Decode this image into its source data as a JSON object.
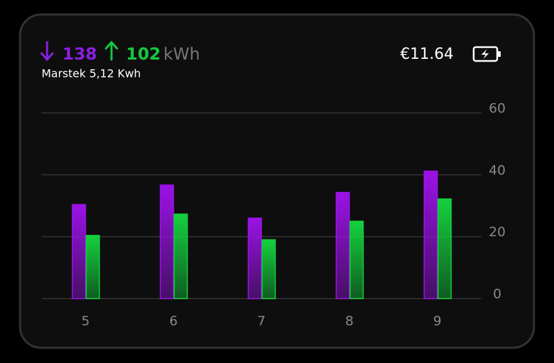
{
  "header": {
    "import": "138",
    "export": "102",
    "unit": "kWh",
    "subtitle": "Marstek 5,12 Kwh",
    "cost": "€11.64"
  },
  "chart_data": {
    "type": "bar",
    "categories": [
      "5",
      "6",
      "7",
      "8",
      "9"
    ],
    "series": [
      {
        "color": "#9b12e6",
        "values": [
          30.4,
          36.7,
          26,
          34.3,
          41.2
        ]
      },
      {
        "color": "#14d13e",
        "values": [
          20.4,
          27.3,
          19,
          25,
          32.2
        ]
      }
    ],
    "ylim": [
      0,
      60
    ],
    "yticks": [
      0,
      20,
      40,
      60
    ],
    "grid": true
  }
}
